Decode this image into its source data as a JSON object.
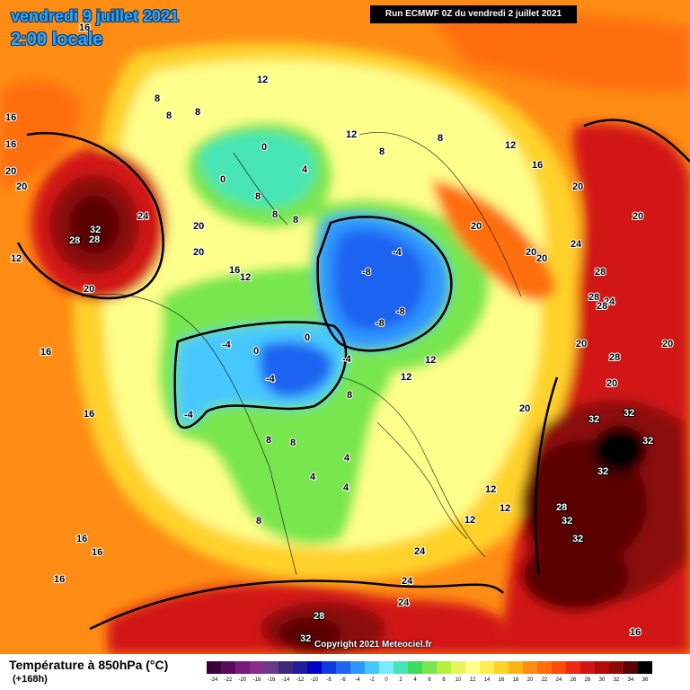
{
  "header": {
    "date": "vendredi 9 juillet 2021",
    "time": "2:00 locale",
    "run": "Run ECMWF 0Z du vendredi 2 juillet 2021"
  },
  "footer": {
    "copyright": "Copyright 2021 Meteociel.fr",
    "legend_title": "Température à 850hPa (°C)",
    "legend_subtitle": "(+168h)"
  },
  "legend_scale": [
    {
      "value": "-24",
      "color": "#3b003b"
    },
    {
      "value": "-22",
      "color": "#5a0a5a"
    },
    {
      "value": "-20",
      "color": "#7a1a7a"
    },
    {
      "value": "-18",
      "color": "#8a2a8a"
    },
    {
      "value": "-16",
      "color": "#6a3a8a"
    },
    {
      "value": "-14",
      "color": "#3c2c78"
    },
    {
      "value": "-12",
      "color": "#1e1e9a"
    },
    {
      "value": "-10",
      "color": "#0000c8"
    },
    {
      "value": "-8",
      "color": "#0a3ae0"
    },
    {
      "value": "-6",
      "color": "#1e64f0"
    },
    {
      "value": "-4",
      "color": "#2e96ff"
    },
    {
      "value": "-2",
      "color": "#46c8ff"
    },
    {
      "value": "0",
      "color": "#78ecff"
    },
    {
      "value": "2",
      "color": "#46e6b4"
    },
    {
      "value": "4",
      "color": "#3cdc5a"
    },
    {
      "value": "6",
      "color": "#78e650"
    },
    {
      "value": "8",
      "color": "#b4f03c"
    },
    {
      "value": "10",
      "color": "#e6f55a"
    },
    {
      "value": "12",
      "color": "#ffff8c"
    },
    {
      "value": "14",
      "color": "#fff050"
    },
    {
      "value": "16",
      "color": "#ffd22a"
    },
    {
      "value": "18",
      "color": "#ffb414"
    },
    {
      "value": "20",
      "color": "#ff8c14"
    },
    {
      "value": "22",
      "color": "#ff6e0a"
    },
    {
      "value": "24",
      "color": "#ff4a0a"
    },
    {
      "value": "26",
      "color": "#f02814"
    },
    {
      "value": "28",
      "color": "#d21414"
    },
    {
      "value": "30",
      "color": "#b40a0a"
    },
    {
      "value": "32",
      "color": "#8c0a0a"
    },
    {
      "value": "34",
      "color": "#5a0505"
    },
    {
      "value": "36",
      "color": "#000000"
    }
  ],
  "map_labels": [
    "16",
    "16",
    "16",
    "20",
    "20",
    "24",
    "32",
    "28",
    "28",
    "20",
    "20",
    "16",
    "20",
    "16",
    "16",
    "16",
    "16",
    "16",
    "8",
    "8",
    "8",
    "12",
    "0",
    "0",
    "4",
    "8",
    "8",
    "8",
    "12",
    "12",
    "8",
    "8",
    "12",
    "16",
    "20",
    "20",
    "20",
    "20",
    "20",
    "24",
    "28",
    "28",
    "24",
    "28",
    "20",
    "28",
    "20",
    "20",
    "12",
    "-4",
    "-8",
    "-8",
    "-8",
    "0",
    "-4",
    "0",
    "-4",
    "-4",
    "-4",
    "8",
    "12",
    "12",
    "20",
    "32",
    "32",
    "32",
    "32",
    "28",
    "32",
    "32",
    "8",
    "8",
    "4",
    "4",
    "4",
    "8",
    "12",
    "12",
    "12",
    "24",
    "24",
    "24",
    "28",
    "32",
    "16"
  ]
}
